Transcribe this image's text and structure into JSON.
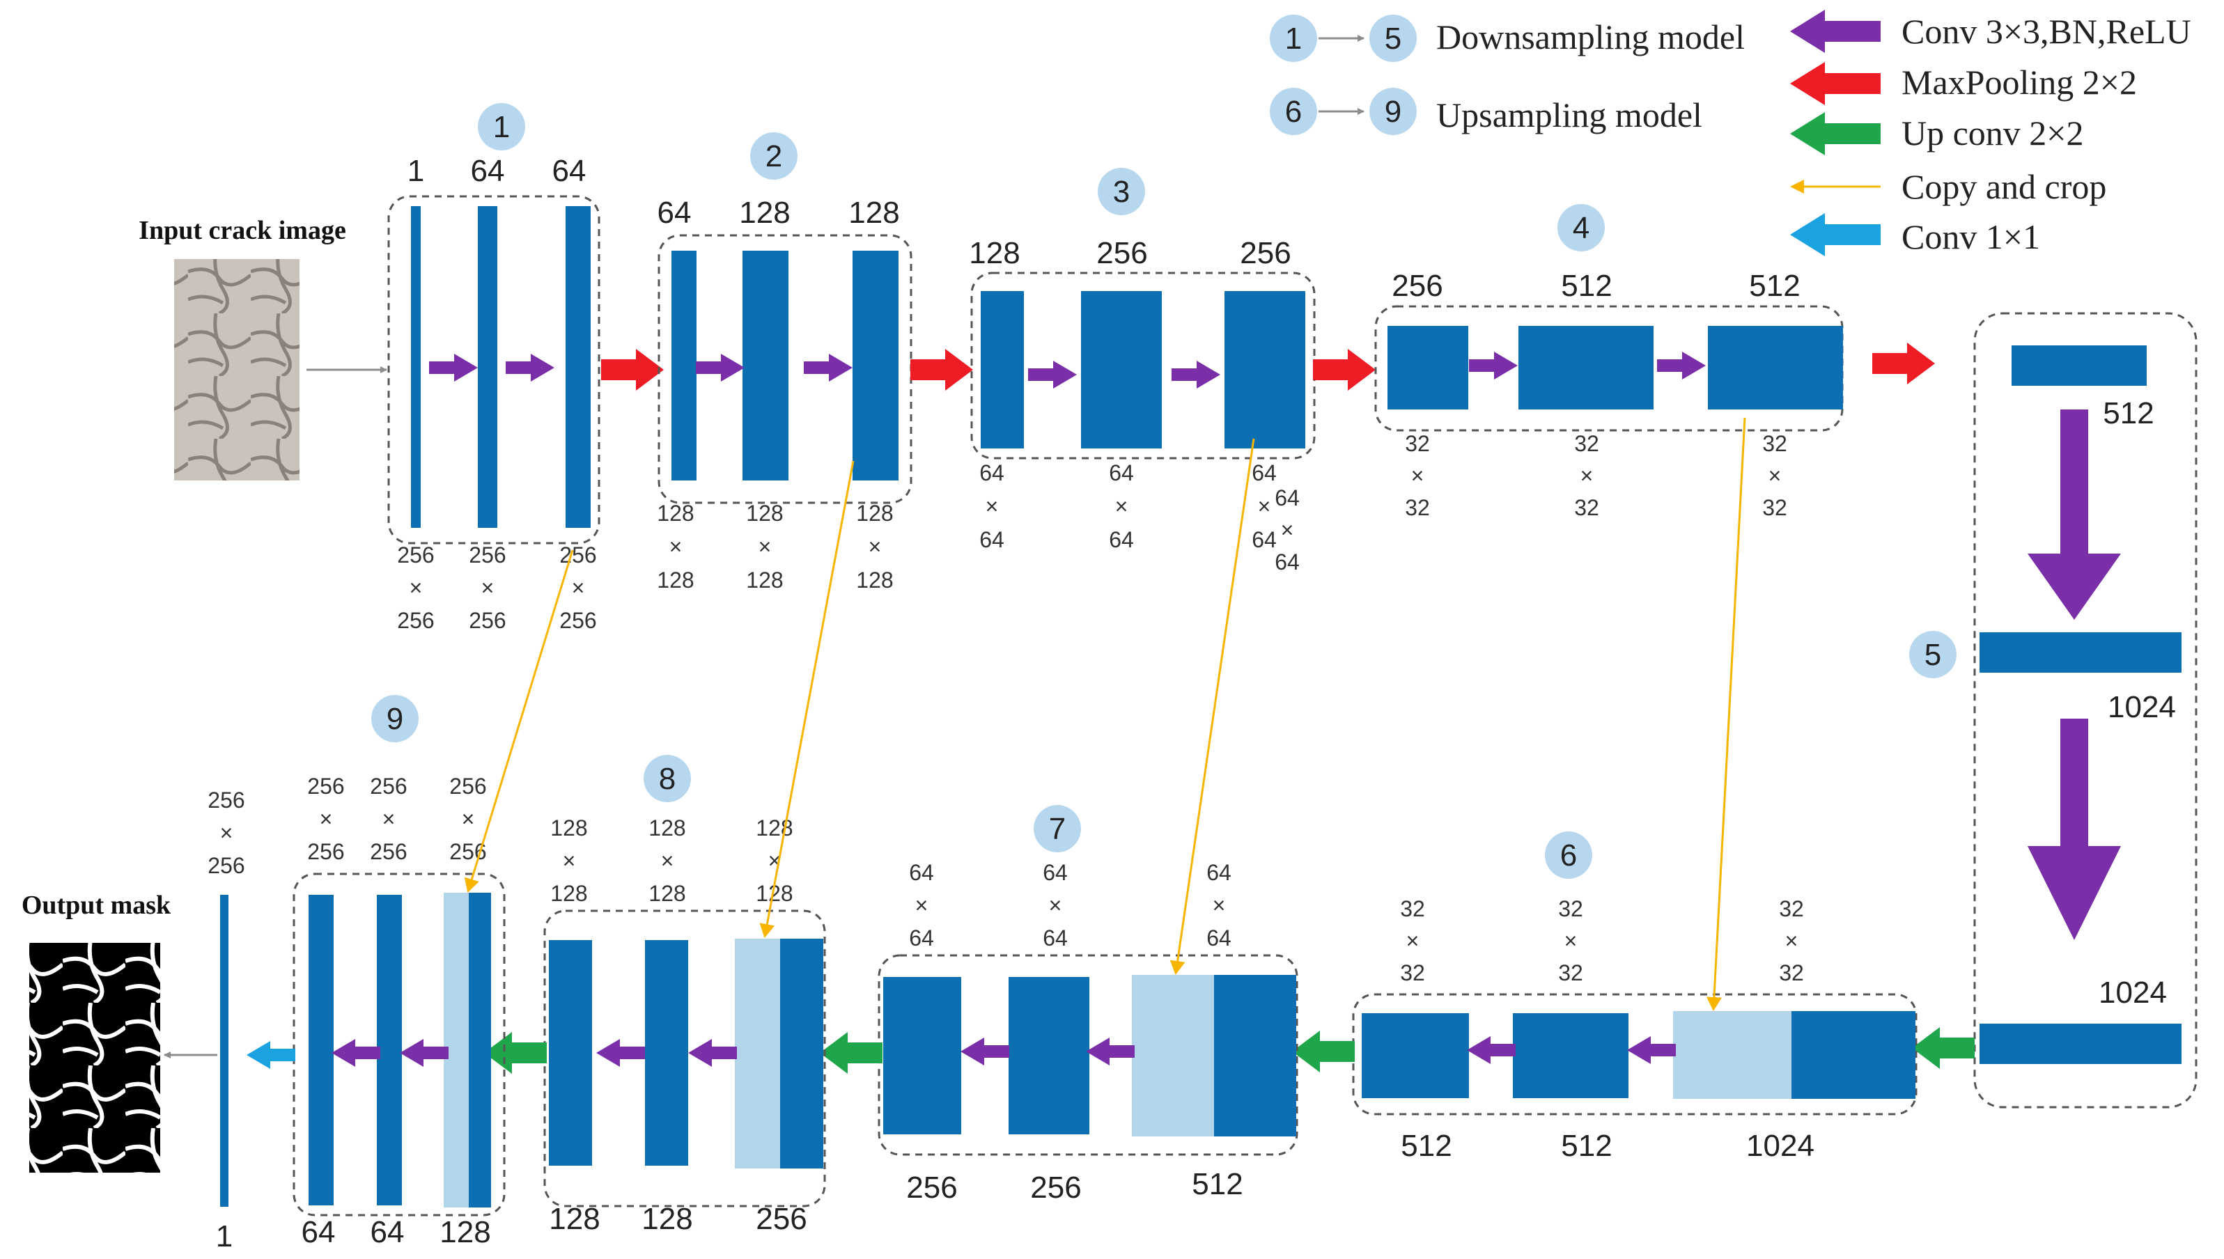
{
  "legend": [
    {
      "from": "1",
      "to": "5",
      "text": "Downsampling model"
    },
    {
      "from": "6",
      "to": "9",
      "text": "Upsampling model"
    },
    {
      "text": "Conv 3×3,BN,ReLU",
      "color": "#7a2ea8"
    },
    {
      "text": "MaxPooling 2×2",
      "color": "#ee1c24"
    },
    {
      "text": "Up conv 2×2",
      "color": "#1fa64a"
    },
    {
      "text": "Copy and crop",
      "color": "#f7b500"
    },
    {
      "text": "Conv 1×1",
      "color": "#1aa3e0"
    }
  ],
  "labels": {
    "input": "Input crack image",
    "output": "Output mask"
  },
  "stages": [
    "1",
    "2",
    "3",
    "4",
    "5",
    "6",
    "7",
    "8",
    "9"
  ],
  "channels": {
    "s1": [
      "1",
      "64",
      "64"
    ],
    "s2": [
      "64",
      "128",
      "128"
    ],
    "s3": [
      "128",
      "256",
      "256"
    ],
    "s4": [
      "256",
      "512",
      "512"
    ],
    "s5": [
      "512",
      "1024",
      "1024"
    ],
    "s6": [
      "512",
      "512",
      "1024"
    ],
    "s7": [
      "256",
      "256",
      "512"
    ],
    "s8": [
      "128",
      "128",
      "256"
    ],
    "s9": [
      "64",
      "64",
      "128"
    ],
    "final": "1"
  },
  "dims": {
    "d256": [
      "256",
      "×",
      "256"
    ],
    "d128": [
      "128",
      "×",
      "128"
    ],
    "d64": [
      "64",
      "×",
      "64"
    ],
    "d32": [
      "32",
      "×",
      "32"
    ]
  },
  "colors": {
    "block": "#0b6fb1",
    "copied": "#b3d5ec",
    "conv": "#7a2ea8",
    "pool": "#ee1c24",
    "upconv": "#1fa64a",
    "copy": "#f7b500",
    "conv1x1": "#1aa3e0"
  }
}
